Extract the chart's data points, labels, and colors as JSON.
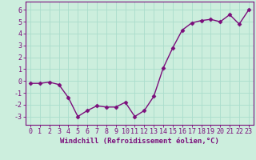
{
  "x": [
    0,
    1,
    2,
    3,
    4,
    5,
    6,
    7,
    8,
    9,
    10,
    11,
    12,
    13,
    14,
    15,
    16,
    17,
    18,
    19,
    20,
    21,
    22,
    23
  ],
  "y": [
    -0.2,
    -0.2,
    -0.1,
    -0.3,
    -1.4,
    -3.0,
    -2.5,
    -2.1,
    -2.2,
    -2.2,
    -1.8,
    -3.0,
    -2.5,
    -1.3,
    1.1,
    2.8,
    4.3,
    4.9,
    5.1,
    5.2,
    5.0,
    5.6,
    4.8,
    6.0
  ],
  "line_color": "#7b0d7b",
  "marker": "D",
  "markersize": 2.5,
  "linewidth": 1.0,
  "xlabel": "Windchill (Refroidissement éolien,°C)",
  "xlim": [
    -0.5,
    23.5
  ],
  "ylim": [
    -3.7,
    6.7
  ],
  "yticks": [
    -3,
    -2,
    -1,
    0,
    1,
    2,
    3,
    4,
    5,
    6
  ],
  "xticks": [
    0,
    1,
    2,
    3,
    4,
    5,
    6,
    7,
    8,
    9,
    10,
    11,
    12,
    13,
    14,
    15,
    16,
    17,
    18,
    19,
    20,
    21,
    22,
    23
  ],
  "bg_color": "#cceedd",
  "grid_color": "#aaddcc",
  "axis_color": "#7b0d7b",
  "tick_color": "#7b0d7b",
  "xlabel_fontsize": 6.5,
  "tick_fontsize": 6.0
}
